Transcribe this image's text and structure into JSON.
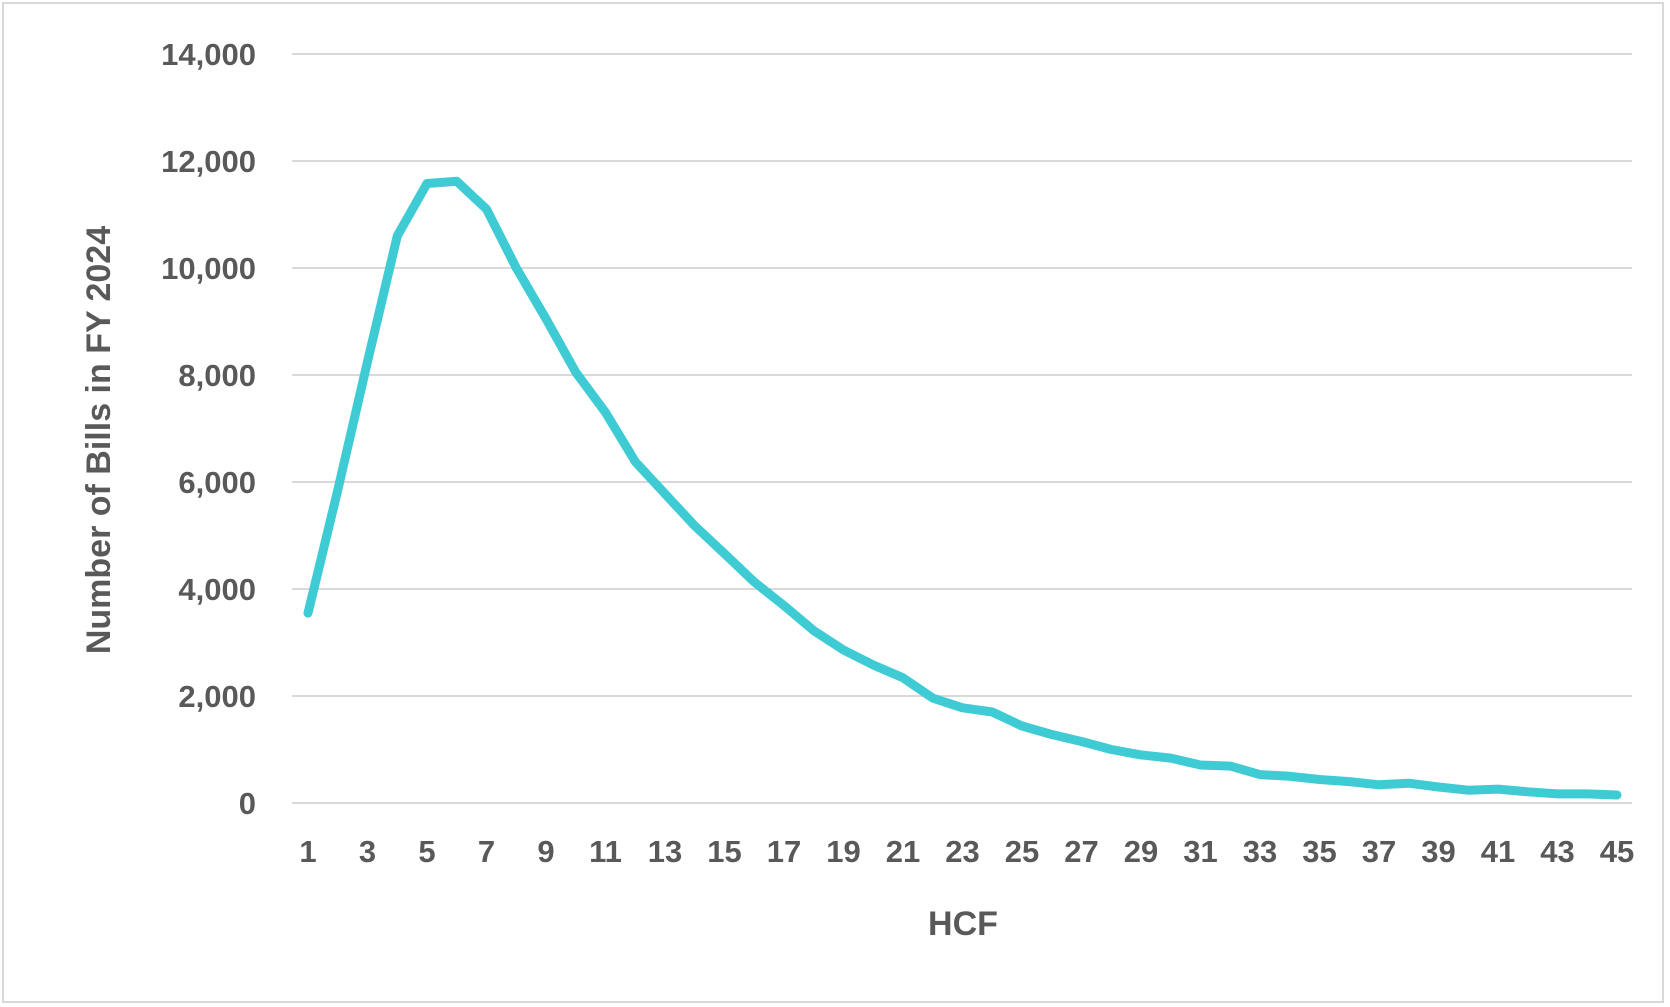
{
  "chart_data": {
    "type": "line",
    "xlabel": "HCF",
    "ylabel": "Number of Bills in FY 2024",
    "ylim": [
      0,
      14000
    ],
    "yticks": [
      0,
      2000,
      4000,
      6000,
      8000,
      10000,
      12000,
      14000
    ],
    "ytick_labels": [
      "0",
      "2,000",
      "4,000",
      "6,000",
      "8,000",
      "10,000",
      "12,000",
      "14,000"
    ],
    "x_tick_labels": [
      "1",
      "3",
      "5",
      "7",
      "9",
      "11",
      "13",
      "15",
      "17",
      "19",
      "21",
      "23",
      "25",
      "27",
      "29",
      "31",
      "33",
      "35",
      "37",
      "39",
      "41",
      "43",
      "45"
    ],
    "grid": true,
    "line_color": "#3ecbd4",
    "series": [
      {
        "x": [
          1,
          2,
          3,
          4,
          5,
          6,
          7,
          8,
          9,
          10,
          11,
          12,
          13,
          14,
          15,
          16,
          17,
          18,
          19,
          20,
          21,
          22,
          23,
          24,
          25,
          26,
          27,
          28,
          29,
          30,
          31,
          32,
          33,
          34,
          35,
          36,
          37,
          38,
          39,
          40,
          41,
          42,
          43,
          44,
          45
        ],
        "values": [
          3550,
          5850,
          8250,
          10600,
          11580,
          11620,
          11100,
          10000,
          9050,
          8050,
          7300,
          6380,
          5780,
          5180,
          4660,
          4130,
          3690,
          3220,
          2860,
          2580,
          2340,
          1960,
          1780,
          1700,
          1440,
          1280,
          1150,
          1000,
          900,
          840,
          710,
          690,
          530,
          500,
          440,
          400,
          340,
          370,
          300,
          240,
          260,
          210,
          170,
          170,
          150
        ]
      }
    ]
  }
}
